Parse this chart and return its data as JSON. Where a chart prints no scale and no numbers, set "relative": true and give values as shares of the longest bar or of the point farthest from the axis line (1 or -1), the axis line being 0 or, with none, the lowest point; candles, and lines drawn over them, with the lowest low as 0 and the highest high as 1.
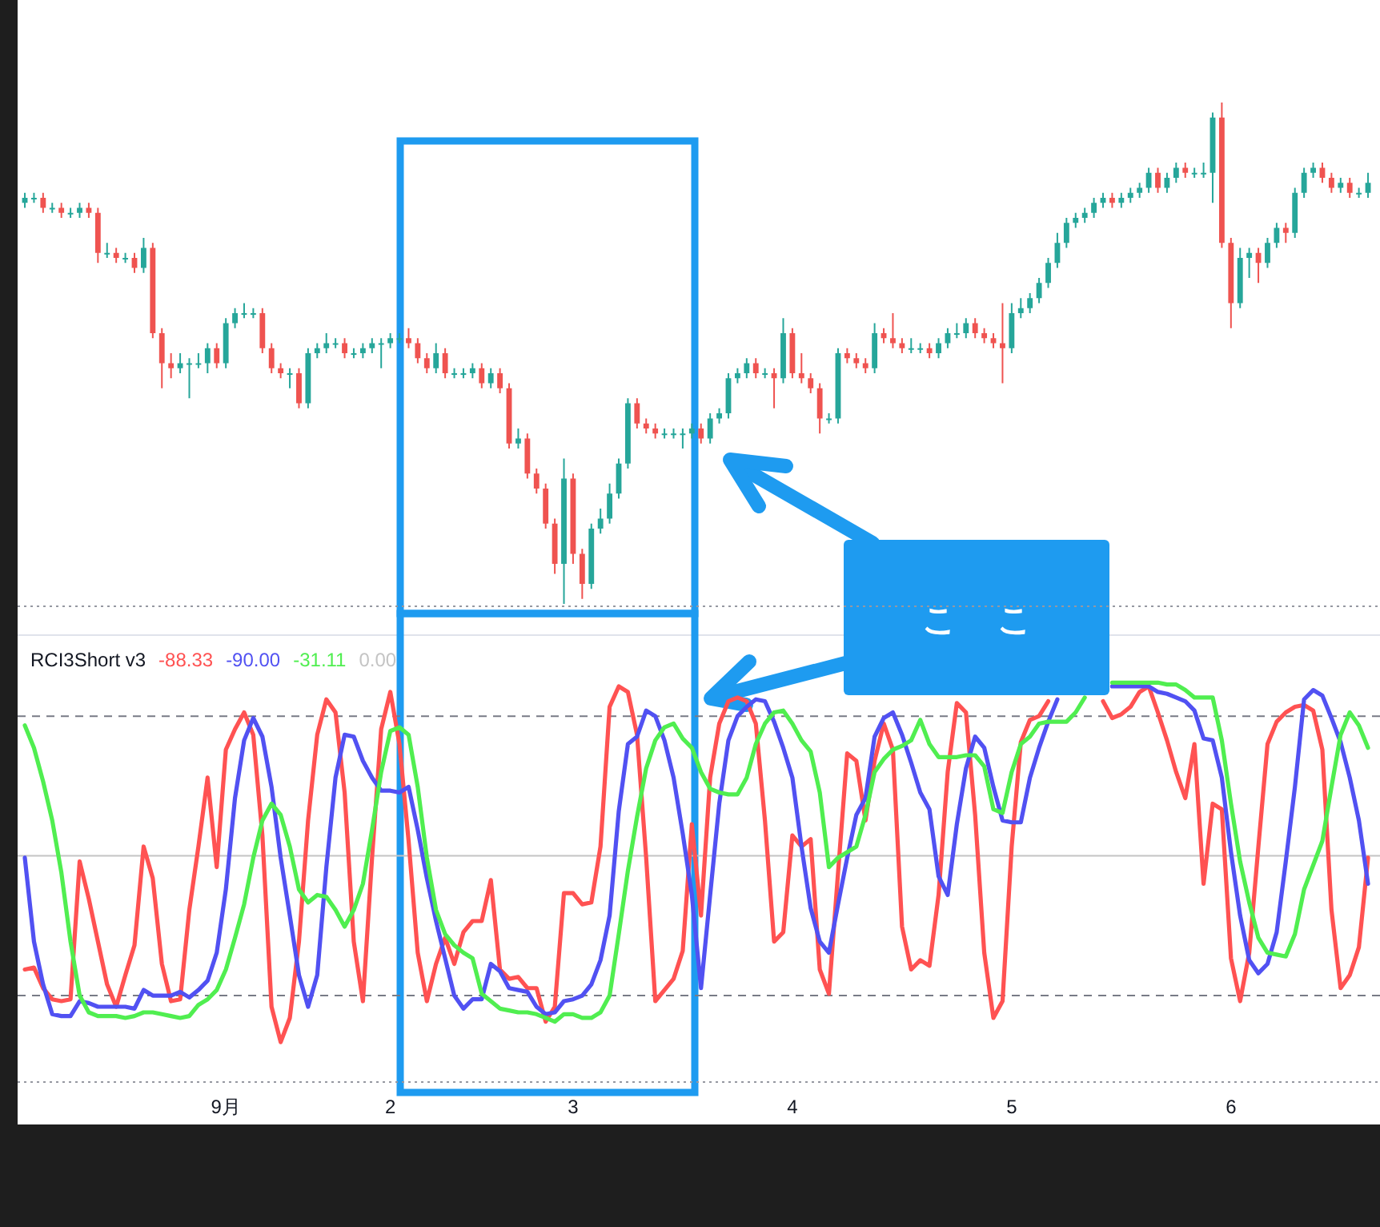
{
  "chart_data": [
    {
      "type": "candlestick",
      "relative": true,
      "tick_labels": false,
      "annotations": [
        "ここ"
      ],
      "categories": [
        null,
        null,
        null,
        null,
        null,
        null,
        null,
        null,
        null,
        null,
        null,
        null,
        null,
        null,
        null,
        null,
        null,
        null,
        null,
        null,
        null,
        null,
        null,
        null,
        null,
        null,
        null,
        null,
        null,
        null,
        null,
        null,
        null,
        null,
        null,
        null,
        null,
        null,
        null,
        null,
        null,
        null,
        null,
        null,
        null,
        null,
        null,
        null,
        null,
        null,
        null,
        null,
        null,
        null,
        null,
        null,
        null,
        null,
        null,
        null,
        null,
        null,
        null,
        null,
        null,
        null,
        null,
        null,
        null,
        null,
        null,
        null,
        null,
        null,
        null,
        null,
        null,
        null,
        null,
        null,
        null,
        null,
        null,
        null,
        null,
        null,
        null,
        null,
        null,
        null,
        null,
        null,
        null,
        null,
        null,
        null,
        null,
        null,
        null,
        null,
        null,
        null,
        null,
        null,
        null,
        null,
        null,
        null,
        null,
        null,
        null,
        null,
        null,
        null,
        null,
        null,
        null,
        null,
        null,
        null,
        null,
        null,
        null,
        null,
        null,
        null,
        null,
        null,
        null,
        null,
        null,
        null,
        null,
        null,
        null,
        null,
        null,
        null,
        null,
        null,
        null,
        null,
        null,
        null,
        null,
        null,
        null,
        null
      ],
      "ohlc": [
        [
          0.8,
          0.82,
          0.79,
          0.81
        ],
        [
          0.81,
          0.82,
          0.8,
          0.81
        ],
        [
          0.81,
          0.82,
          0.78,
          0.79
        ],
        [
          0.79,
          0.8,
          0.78,
          0.79
        ],
        [
          0.79,
          0.8,
          0.77,
          0.78
        ],
        [
          0.78,
          0.79,
          0.77,
          0.78
        ],
        [
          0.78,
          0.8,
          0.77,
          0.79
        ],
        [
          0.79,
          0.8,
          0.77,
          0.78
        ],
        [
          0.78,
          0.79,
          0.68,
          0.7
        ],
        [
          0.7,
          0.72,
          0.69,
          0.7
        ],
        [
          0.7,
          0.71,
          0.68,
          0.69
        ],
        [
          0.69,
          0.7,
          0.68,
          0.69
        ],
        [
          0.69,
          0.7,
          0.66,
          0.67
        ],
        [
          0.67,
          0.73,
          0.66,
          0.71
        ],
        [
          0.71,
          0.72,
          0.53,
          0.54
        ],
        [
          0.54,
          0.55,
          0.43,
          0.48
        ],
        [
          0.48,
          0.5,
          0.45,
          0.47
        ],
        [
          0.47,
          0.5,
          0.46,
          0.48
        ],
        [
          0.48,
          0.49,
          0.41,
          0.48
        ],
        [
          0.48,
          0.5,
          0.47,
          0.48
        ],
        [
          0.48,
          0.52,
          0.46,
          0.51
        ],
        [
          0.51,
          0.52,
          0.47,
          0.48
        ],
        [
          0.48,
          0.57,
          0.47,
          0.56
        ],
        [
          0.56,
          0.59,
          0.55,
          0.58
        ],
        [
          0.58,
          0.6,
          0.57,
          0.58
        ],
        [
          0.58,
          0.59,
          0.57,
          0.58
        ],
        [
          0.58,
          0.59,
          0.5,
          0.51
        ],
        [
          0.51,
          0.52,
          0.46,
          0.47
        ],
        [
          0.47,
          0.48,
          0.45,
          0.46
        ],
        [
          0.46,
          0.47,
          0.43,
          0.46
        ],
        [
          0.46,
          0.47,
          0.39,
          0.4
        ],
        [
          0.4,
          0.51,
          0.39,
          0.5
        ],
        [
          0.5,
          0.52,
          0.49,
          0.51
        ],
        [
          0.51,
          0.54,
          0.5,
          0.52
        ],
        [
          0.52,
          0.53,
          0.51,
          0.52
        ],
        [
          0.52,
          0.53,
          0.49,
          0.5
        ],
        [
          0.5,
          0.51,
          0.49,
          0.5
        ],
        [
          0.5,
          0.52,
          0.49,
          0.51
        ],
        [
          0.51,
          0.53,
          0.5,
          0.52
        ],
        [
          0.52,
          0.53,
          0.47,
          0.52
        ],
        [
          0.52,
          0.54,
          0.51,
          0.53
        ],
        [
          0.53,
          0.54,
          0.52,
          0.53
        ],
        [
          0.53,
          0.55,
          0.51,
          0.52
        ],
        [
          0.52,
          0.53,
          0.48,
          0.49
        ],
        [
          0.49,
          0.5,
          0.46,
          0.47
        ],
        [
          0.47,
          0.52,
          0.46,
          0.5
        ],
        [
          0.5,
          0.51,
          0.45,
          0.46
        ],
        [
          0.46,
          0.47,
          0.45,
          0.46
        ],
        [
          0.46,
          0.47,
          0.45,
          0.46
        ],
        [
          0.46,
          0.48,
          0.45,
          0.47
        ],
        [
          0.47,
          0.48,
          0.43,
          0.44
        ],
        [
          0.44,
          0.47,
          0.43,
          0.46
        ],
        [
          0.46,
          0.47,
          0.42,
          0.43
        ],
        [
          0.43,
          0.44,
          0.31,
          0.32
        ],
        [
          0.32,
          0.35,
          0.31,
          0.33
        ],
        [
          0.33,
          0.34,
          0.25,
          0.26
        ],
        [
          0.26,
          0.27,
          0.22,
          0.23
        ],
        [
          0.23,
          0.24,
          0.15,
          0.16
        ],
        [
          0.16,
          0.17,
          0.06,
          0.08
        ],
        [
          0.08,
          0.29,
          0.0,
          0.25
        ],
        [
          0.25,
          0.26,
          0.08,
          0.1
        ],
        [
          0.1,
          0.11,
          0.01,
          0.04
        ],
        [
          0.04,
          0.16,
          0.03,
          0.15
        ],
        [
          0.15,
          0.19,
          0.14,
          0.17
        ],
        [
          0.17,
          0.24,
          0.16,
          0.22
        ],
        [
          0.22,
          0.29,
          0.21,
          0.28
        ],
        [
          0.28,
          0.41,
          0.27,
          0.4
        ],
        [
          0.4,
          0.41,
          0.35,
          0.36
        ],
        [
          0.36,
          0.37,
          0.34,
          0.35
        ],
        [
          0.35,
          0.36,
          0.33,
          0.34
        ],
        [
          0.34,
          0.35,
          0.33,
          0.34
        ],
        [
          0.34,
          0.35,
          0.33,
          0.34
        ],
        [
          0.34,
          0.35,
          0.31,
          0.34
        ],
        [
          0.34,
          0.36,
          0.33,
          0.35
        ],
        [
          0.35,
          0.36,
          0.32,
          0.33
        ],
        [
          0.33,
          0.38,
          0.32,
          0.37
        ],
        [
          0.37,
          0.39,
          0.36,
          0.38
        ],
        [
          0.38,
          0.46,
          0.37,
          0.45
        ],
        [
          0.45,
          0.47,
          0.44,
          0.46
        ],
        [
          0.46,
          0.49,
          0.45,
          0.48
        ],
        [
          0.48,
          0.49,
          0.45,
          0.46
        ],
        [
          0.46,
          0.47,
          0.45,
          0.46
        ],
        [
          0.46,
          0.47,
          0.39,
          0.45
        ],
        [
          0.45,
          0.57,
          0.44,
          0.54
        ],
        [
          0.54,
          0.55,
          0.45,
          0.46
        ],
        [
          0.46,
          0.5,
          0.44,
          0.45
        ],
        [
          0.45,
          0.46,
          0.42,
          0.43
        ],
        [
          0.43,
          0.44,
          0.34,
          0.37
        ],
        [
          0.37,
          0.38,
          0.36,
          0.37
        ],
        [
          0.37,
          0.51,
          0.36,
          0.5
        ],
        [
          0.5,
          0.51,
          0.48,
          0.49
        ],
        [
          0.49,
          0.5,
          0.47,
          0.48
        ],
        [
          0.48,
          0.49,
          0.46,
          0.47
        ],
        [
          0.47,
          0.56,
          0.46,
          0.54
        ],
        [
          0.54,
          0.55,
          0.52,
          0.53
        ],
        [
          0.53,
          0.58,
          0.51,
          0.52
        ],
        [
          0.52,
          0.53,
          0.5,
          0.51
        ],
        [
          0.51,
          0.53,
          0.5,
          0.51
        ],
        [
          0.51,
          0.52,
          0.5,
          0.51
        ],
        [
          0.51,
          0.52,
          0.49,
          0.5
        ],
        [
          0.5,
          0.53,
          0.49,
          0.52
        ],
        [
          0.52,
          0.55,
          0.51,
          0.54
        ],
        [
          0.54,
          0.56,
          0.53,
          0.54
        ],
        [
          0.54,
          0.57,
          0.53,
          0.56
        ],
        [
          0.56,
          0.57,
          0.53,
          0.54
        ],
        [
          0.54,
          0.55,
          0.52,
          0.53
        ],
        [
          0.53,
          0.54,
          0.51,
          0.52
        ],
        [
          0.52,
          0.6,
          0.44,
          0.51
        ],
        [
          0.51,
          0.6,
          0.5,
          0.58
        ],
        [
          0.58,
          0.61,
          0.57,
          0.59
        ],
        [
          0.59,
          0.62,
          0.58,
          0.61
        ],
        [
          0.61,
          0.65,
          0.6,
          0.64
        ],
        [
          0.64,
          0.69,
          0.63,
          0.68
        ],
        [
          0.68,
          0.74,
          0.67,
          0.72
        ],
        [
          0.72,
          0.77,
          0.71,
          0.76
        ],
        [
          0.76,
          0.78,
          0.75,
          0.77
        ],
        [
          0.77,
          0.79,
          0.76,
          0.78
        ],
        [
          0.78,
          0.81,
          0.77,
          0.8
        ],
        [
          0.8,
          0.82,
          0.79,
          0.81
        ],
        [
          0.81,
          0.82,
          0.79,
          0.8
        ],
        [
          0.8,
          0.82,
          0.79,
          0.81
        ],
        [
          0.81,
          0.83,
          0.8,
          0.82
        ],
        [
          0.82,
          0.84,
          0.81,
          0.83
        ],
        [
          0.83,
          0.87,
          0.82,
          0.86
        ],
        [
          0.86,
          0.87,
          0.82,
          0.83
        ],
        [
          0.83,
          0.86,
          0.82,
          0.85
        ],
        [
          0.85,
          0.88,
          0.84,
          0.87
        ],
        [
          0.87,
          0.88,
          0.85,
          0.86
        ],
        [
          0.86,
          0.87,
          0.85,
          0.86
        ],
        [
          0.86,
          0.88,
          0.85,
          0.86
        ],
        [
          0.86,
          0.98,
          0.8,
          0.97
        ],
        [
          0.97,
          1.0,
          0.71,
          0.72
        ],
        [
          0.72,
          0.73,
          0.55,
          0.6
        ],
        [
          0.6,
          0.71,
          0.59,
          0.69
        ],
        [
          0.69,
          0.71,
          0.65,
          0.7
        ],
        [
          0.7,
          0.71,
          0.64,
          0.68
        ],
        [
          0.68,
          0.73,
          0.67,
          0.72
        ],
        [
          0.72,
          0.76,
          0.71,
          0.75
        ],
        [
          0.75,
          0.76,
          0.72,
          0.74
        ],
        [
          0.74,
          0.83,
          0.73,
          0.82
        ],
        [
          0.82,
          0.87,
          0.81,
          0.86
        ],
        [
          0.86,
          0.88,
          0.85,
          0.87
        ],
        [
          0.87,
          0.88,
          0.84,
          0.85
        ],
        [
          0.85,
          0.86,
          0.82,
          0.83
        ],
        [
          0.83,
          0.85,
          0.82,
          0.84
        ],
        [
          0.84,
          0.85,
          0.81,
          0.82
        ],
        [
          0.82,
          0.83,
          0.81,
          0.82
        ],
        [
          0.82,
          0.86,
          0.81,
          0.84
        ]
      ],
      "colors": [
        "#26a69a",
        "#26a69a",
        "#ef5350",
        "#26a69a",
        "#ef5350",
        "#26a69a",
        "#26a69a",
        "#ef5350",
        "#ef5350",
        "#26a69a",
        "#ef5350",
        "#26a69a",
        "#ef5350",
        "#26a69a",
        "#ef5350",
        "#ef5350",
        "#ef5350",
        "#26a69a",
        "#26a69a",
        "#26a69a",
        "#26a69a",
        "#ef5350",
        "#26a69a",
        "#26a69a",
        "#26a69a",
        "#26a69a",
        "#ef5350",
        "#ef5350",
        "#ef5350",
        "#26a69a",
        "#ef5350",
        "#26a69a",
        "#26a69a",
        "#26a69a",
        "#26a69a",
        "#ef5350",
        "#26a69a",
        "#26a69a",
        "#26a69a",
        "#26a69a",
        "#26a69a",
        "#26a69a",
        "#ef5350",
        "#ef5350",
        "#ef5350",
        "#26a69a",
        "#ef5350",
        "#26a69a",
        "#26a69a",
        "#26a69a",
        "#ef5350",
        "#26a69a",
        "#ef5350",
        "#ef5350",
        "#26a69a",
        "#ef5350",
        "#ef5350",
        "#ef5350",
        "#ef5350",
        "#26a69a",
        "#ef5350",
        "#ef5350",
        "#26a69a",
        "#26a69a",
        "#26a69a",
        "#26a69a",
        "#26a69a",
        "#ef5350",
        "#ef5350",
        "#ef5350",
        "#26a69a",
        "#26a69a",
        "#26a69a",
        "#26a69a",
        "#ef5350",
        "#26a69a",
        "#26a69a",
        "#26a69a",
        "#26a69a",
        "#26a69a",
        "#ef5350",
        "#26a69a",
        "#ef5350",
        "#26a69a",
        "#ef5350",
        "#ef5350",
        "#ef5350",
        "#ef5350",
        "#26a69a",
        "#26a69a",
        "#ef5350",
        "#ef5350",
        "#ef5350",
        "#26a69a",
        "#ef5350",
        "#ef5350",
        "#ef5350",
        "#26a69a",
        "#26a69a",
        "#ef5350",
        "#26a69a",
        "#26a69a",
        "#26a69a",
        "#26a69a",
        "#ef5350",
        "#ef5350",
        "#ef5350",
        "#ef5350",
        "#26a69a",
        "#26a69a",
        "#26a69a",
        "#26a69a",
        "#26a69a",
        "#26a69a",
        "#26a69a",
        "#26a69a",
        "#26a69a",
        "#26a69a",
        "#26a69a",
        "#ef5350",
        "#26a69a",
        "#26a69a",
        "#26a69a",
        "#26a69a",
        "#ef5350",
        "#26a69a",
        "#26a69a",
        "#ef5350",
        "#26a69a",
        "#26a69a",
        "#26a69a",
        "#ef5350",
        "#ef5350",
        "#26a69a",
        "#26a69a",
        "#ef5350",
        "#26a69a",
        "#26a69a",
        "#ef5350",
        "#26a69a",
        "#26a69a",
        "#26a69a",
        "#ef5350",
        "#ef5350",
        "#26a69a",
        "#ef5350",
        "#26a69a",
        "#26a69a"
      ]
    },
    {
      "type": "line",
      "title": "RCI3Short v3",
      "relative": true,
      "tick_labels": "x",
      "legend": "top left",
      "categories": [
        null,
        null,
        null,
        null,
        null,
        null,
        null,
        null,
        null,
        null,
        null,
        null,
        null,
        null,
        null,
        null,
        null,
        null,
        null,
        null,
        null,
        null,
        "9月",
        null,
        null,
        null,
        null,
        null,
        null,
        null,
        null,
        null,
        null,
        null,
        null,
        null,
        null,
        null,
        null,
        null,
        "2",
        null,
        null,
        null,
        null,
        null,
        null,
        null,
        null,
        null,
        null,
        null,
        null,
        null,
        null,
        null,
        null,
        null,
        null,
        null,
        "3",
        null,
        null,
        null,
        null,
        null,
        null,
        null,
        null,
        null,
        null,
        null,
        null,
        null,
        null,
        null,
        null,
        null,
        null,
        null,
        null,
        null,
        null,
        null,
        "4",
        null,
        null,
        null,
        null,
        null,
        null,
        null,
        null,
        null,
        null,
        null,
        null,
        null,
        null,
        null,
        null,
        null,
        null,
        null,
        null,
        null,
        null,
        null,
        "5",
        null,
        null,
        null,
        null,
        null,
        null,
        null,
        null,
        null,
        null,
        null,
        null,
        null,
        null,
        null,
        null,
        null,
        null,
        null,
        null,
        null,
        null,
        null,
        "6",
        null,
        null,
        null,
        null,
        null,
        null,
        null,
        null,
        null,
        null,
        null,
        null,
        null,
        null,
        null
      ],
      "series": [
        {
          "name": "-88.33",
          "color": "#ff5252",
          "values": [
            -0.61,
            -0.6,
            -0.71,
            -0.77,
            -0.78,
            -0.77,
            -0.03,
            -0.23,
            -0.46,
            -0.69,
            -0.81,
            -0.64,
            -0.48,
            0.05,
            -0.12,
            -0.58,
            -0.78,
            -0.77,
            -0.29,
            0.05,
            0.42,
            -0.06,
            0.57,
            0.68,
            0.77,
            0.65,
            0.11,
            -0.81,
            -1.0,
            -0.87,
            -0.46,
            0.19,
            0.65,
            0.84,
            0.77,
            0.34,
            -0.46,
            -0.78,
            -0.01,
            0.68,
            0.88,
            0.6,
            0.08,
            -0.52,
            -0.78,
            -0.58,
            -0.44,
            -0.58,
            -0.41,
            -0.35,
            -0.35,
            -0.13,
            -0.61,
            -0.66,
            -0.65,
            -0.71,
            -0.71,
            -0.89,
            -0.81,
            -0.2,
            -0.2,
            -0.26,
            -0.25,
            0.05,
            0.8,
            0.91,
            0.88,
            0.65,
            -0.01,
            -0.78,
            -0.72,
            -0.66,
            -0.51,
            0.17,
            -0.32,
            0.42,
            0.71,
            0.83,
            0.85,
            0.83,
            0.71,
            0.19,
            -0.46,
            -0.41,
            0.11,
            0.05,
            0.09,
            -0.61,
            -0.74,
            -0.09,
            0.55,
            0.51,
            0.19,
            0.51,
            0.71,
            0.57,
            -0.38,
            -0.61,
            -0.56,
            -0.59,
            -0.21,
            0.45,
            0.82,
            0.77,
            0.22,
            -0.52,
            -0.87,
            -0.78,
            0.05,
            0.61,
            0.73,
            0.75,
            0.83,
            null,
            null,
            null,
            null,
            null,
            0.83,
            0.74,
            0.76,
            0.8,
            0.88,
            0.91,
            0.77,
            0.62,
            0.45,
            0.31,
            0.6,
            -0.15,
            0.28,
            0.25,
            -0.55,
            -0.78,
            -0.52,
            0.05,
            0.6,
            0.72,
            0.77,
            0.8,
            0.81,
            0.78,
            0.57,
            -0.29,
            -0.71,
            -0.64,
            -0.49,
            -0.01
          ]
        },
        {
          "name": "-90.00",
          "color": "#5151f2",
          "values": [
            -0.01,
            -0.46,
            -0.69,
            -0.85,
            -0.86,
            -0.86,
            -0.78,
            -0.79,
            -0.81,
            -0.81,
            -0.81,
            -0.81,
            -0.82,
            -0.72,
            -0.75,
            -0.75,
            -0.75,
            -0.73,
            -0.76,
            -0.72,
            -0.67,
            -0.52,
            -0.18,
            0.31,
            0.62,
            0.74,
            0.64,
            0.37,
            -0.01,
            -0.32,
            -0.64,
            -0.81,
            -0.64,
            -0.06,
            0.42,
            0.65,
            0.64,
            0.51,
            0.42,
            0.35,
            0.35,
            0.34,
            0.37,
            0.14,
            -0.12,
            -0.35,
            -0.55,
            -0.75,
            -0.82,
            -0.77,
            -0.77,
            -0.58,
            -0.62,
            -0.71,
            -0.72,
            -0.73,
            -0.81,
            -0.85,
            -0.84,
            -0.78,
            -0.77,
            -0.75,
            -0.69,
            -0.56,
            -0.32,
            0.24,
            0.6,
            0.64,
            0.78,
            0.75,
            0.62,
            0.42,
            0.12,
            -0.21,
            -0.71,
            -0.21,
            0.28,
            0.62,
            0.75,
            0.8,
            0.84,
            0.83,
            0.72,
            0.58,
            0.42,
            0.05,
            -0.28,
            -0.46,
            -0.52,
            -0.26,
            -0.01,
            0.22,
            0.31,
            0.64,
            0.74,
            0.77,
            0.65,
            0.5,
            0.34,
            0.25,
            -0.11,
            -0.21,
            0.17,
            0.47,
            0.64,
            0.58,
            0.37,
            0.19,
            0.18,
            0.18,
            0.42,
            0.58,
            0.72,
            0.84,
            null,
            null,
            null,
            null,
            null,
            0.91,
            0.91,
            0.91,
            0.91,
            0.91,
            0.88,
            0.87,
            0.85,
            0.83,
            0.78,
            0.63,
            0.62,
            0.42,
            0.02,
            -0.32,
            -0.56,
            -0.63,
            -0.58,
            -0.41,
            -0.03,
            0.37,
            0.84,
            0.89,
            0.86,
            0.74,
            0.61,
            0.42,
            0.19,
            -0.15
          ]
        },
        {
          "name": "-31.11",
          "color": "#50ee50",
          "values": [
            0.7,
            0.58,
            0.4,
            0.19,
            -0.09,
            -0.46,
            -0.75,
            -0.84,
            -0.86,
            -0.86,
            -0.86,
            -0.87,
            -0.86,
            -0.84,
            -0.84,
            -0.85,
            -0.86,
            -0.87,
            -0.86,
            -0.8,
            -0.77,
            -0.72,
            -0.61,
            -0.44,
            -0.26,
            -0.01,
            0.19,
            0.28,
            0.22,
            0.05,
            -0.18,
            -0.25,
            -0.21,
            -0.22,
            -0.29,
            -0.38,
            -0.29,
            -0.15,
            0.14,
            0.45,
            0.67,
            0.69,
            0.65,
            0.37,
            -0.01,
            -0.29,
            -0.42,
            -0.48,
            -0.52,
            -0.55,
            -0.74,
            -0.78,
            -0.82,
            -0.83,
            -0.84,
            -0.84,
            -0.85,
            -0.87,
            -0.89,
            -0.85,
            -0.85,
            -0.87,
            -0.87,
            -0.84,
            -0.75,
            -0.42,
            -0.08,
            0.21,
            0.47,
            0.62,
            0.69,
            0.71,
            0.63,
            0.58,
            0.45,
            0.36,
            0.34,
            0.33,
            0.33,
            0.42,
            0.6,
            0.71,
            0.77,
            0.78,
            0.71,
            0.62,
            0.56,
            0.34,
            -0.06,
            -0.01,
            0.02,
            0.05,
            0.22,
            0.45,
            0.52,
            0.57,
            0.59,
            0.62,
            0.73,
            0.6,
            0.53,
            0.53,
            0.53,
            0.54,
            0.54,
            0.48,
            0.25,
            0.23,
            0.45,
            0.6,
            0.64,
            0.71,
            0.72,
            0.72,
            0.72,
            0.77,
            0.85,
            null,
            null,
            0.93,
            0.93,
            0.93,
            0.93,
            0.93,
            0.93,
            0.92,
            0.92,
            0.89,
            0.85,
            0.85,
            0.85,
            0.62,
            0.28,
            -0.03,
            -0.25,
            -0.44,
            -0.52,
            -0.53,
            -0.54,
            -0.42,
            -0.18,
            -0.05,
            0.08,
            0.37,
            0.65,
            0.77,
            0.7,
            0.58
          ]
        }
      ],
      "ref_lines": [
        {
          "axis": "y",
          "value": 0.75,
          "color": "#787b86",
          "line_style": "dashed"
        },
        {
          "axis": "y",
          "value": -0.75,
          "color": "#787b86",
          "line_style": "dashed"
        },
        {
          "axis": "y",
          "value": 0,
          "label": "0.00",
          "color": "#c4c4c4",
          "line_style": "solid"
        }
      ]
    }
  ]
}
